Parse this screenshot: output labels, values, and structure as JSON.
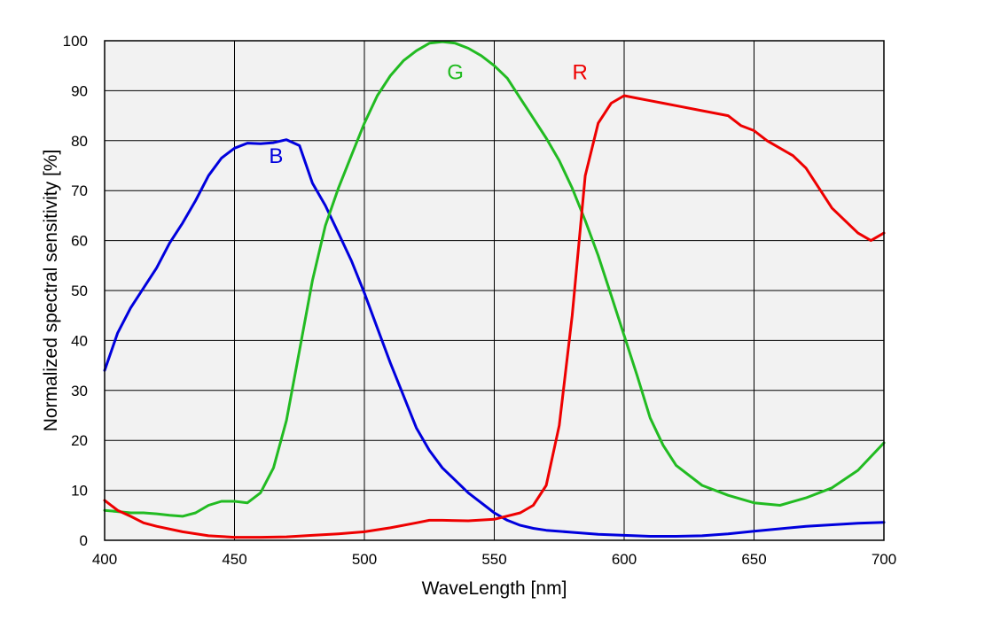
{
  "chart_data": {
    "type": "line",
    "title": "",
    "xlabel": "WaveLength [nm]",
    "ylabel": "Normalized spectral sensitivity [%]",
    "xlim": [
      400,
      700
    ],
    "ylim": [
      0,
      100
    ],
    "x_ticks": [
      400,
      450,
      500,
      550,
      600,
      650,
      700
    ],
    "y_ticks": [
      0,
      10,
      20,
      30,
      40,
      50,
      60,
      70,
      80,
      90,
      100
    ],
    "grid": true,
    "plot_background": "#f2f2f2",
    "series": [
      {
        "name": "B",
        "color": "#0000dd",
        "x": [
          400,
          405,
          410,
          415,
          420,
          425,
          430,
          435,
          440,
          445,
          450,
          455,
          460,
          465,
          470,
          475,
          480,
          485,
          490,
          495,
          500,
          505,
          510,
          515,
          520,
          525,
          530,
          540,
          550,
          555,
          560,
          565,
          570,
          580,
          590,
          600,
          610,
          620,
          630,
          640,
          650,
          660,
          670,
          680,
          690,
          700
        ],
        "y": [
          34,
          41.5,
          46.5,
          50.5,
          54.5,
          59.5,
          63.5,
          68,
          73,
          76.5,
          78.5,
          79.5,
          79.4,
          79.6,
          80.2,
          79,
          71.5,
          67,
          61.5,
          56,
          49.5,
          42.5,
          35.5,
          29,
          22.5,
          18,
          14.5,
          9.5,
          5.5,
          4,
          3,
          2.4,
          2,
          1.6,
          1.2,
          1,
          0.8,
          0.8,
          0.9,
          1.3,
          1.8,
          2.3,
          2.8,
          3.1,
          3.4,
          3.6
        ]
      },
      {
        "name": "G",
        "color": "#22bb22",
        "x": [
          400,
          410,
          415,
          420,
          425,
          430,
          435,
          440,
          445,
          450,
          455,
          460,
          465,
          470,
          475,
          480,
          485,
          490,
          495,
          500,
          505,
          510,
          515,
          520,
          525,
          530,
          535,
          540,
          545,
          550,
          555,
          560,
          565,
          570,
          575,
          580,
          585,
          590,
          595,
          600,
          605,
          610,
          615,
          620,
          630,
          640,
          650,
          660,
          670,
          680,
          690,
          700
        ],
        "y": [
          6,
          5.5,
          5.5,
          5.3,
          5,
          4.8,
          5.5,
          7,
          7.8,
          7.8,
          7.5,
          9.5,
          14.5,
          24,
          38,
          52,
          63,
          70.5,
          77,
          83.5,
          89,
          93,
          96,
          98,
          99.5,
          99.8,
          99.5,
          98.5,
          97,
          95,
          92.5,
          88.5,
          84.5,
          80.5,
          76,
          70.5,
          64,
          57,
          49,
          41,
          33,
          24.5,
          19,
          15,
          11,
          9,
          7.5,
          7,
          8.5,
          10.5,
          14,
          19.5
        ]
      },
      {
        "name": "R",
        "color": "#ee0000",
        "x": [
          400,
          405,
          410,
          415,
          420,
          430,
          440,
          450,
          460,
          470,
          480,
          490,
          500,
          510,
          520,
          525,
          530,
          540,
          550,
          560,
          565,
          570,
          575,
          580,
          585,
          590,
          595,
          600,
          605,
          610,
          615,
          620,
          630,
          640,
          645,
          650,
          655,
          660,
          665,
          670,
          675,
          680,
          690,
          695,
          700
        ],
        "y": [
          8,
          6,
          4.8,
          3.5,
          2.8,
          1.7,
          0.9,
          0.6,
          0.6,
          0.7,
          1,
          1.3,
          1.7,
          2.5,
          3.5,
          4,
          4,
          3.9,
          4.2,
          5.5,
          7,
          11,
          23,
          45,
          73,
          83.5,
          87.5,
          89,
          88.5,
          88,
          87.5,
          87,
          86,
          85,
          83,
          82,
          80,
          78.5,
          77,
          74.5,
          70.5,
          66.5,
          61.5,
          60,
          61.5
        ]
      }
    ],
    "annotations": [
      {
        "text": "B",
        "x": 466,
        "y": 75.5,
        "color": "#0000dd"
      },
      {
        "text": "G",
        "x": 535,
        "y": 92.3,
        "color": "#22bb22"
      },
      {
        "text": "R",
        "x": 583,
        "y": 92.3,
        "color": "#ee0000"
      }
    ]
  }
}
